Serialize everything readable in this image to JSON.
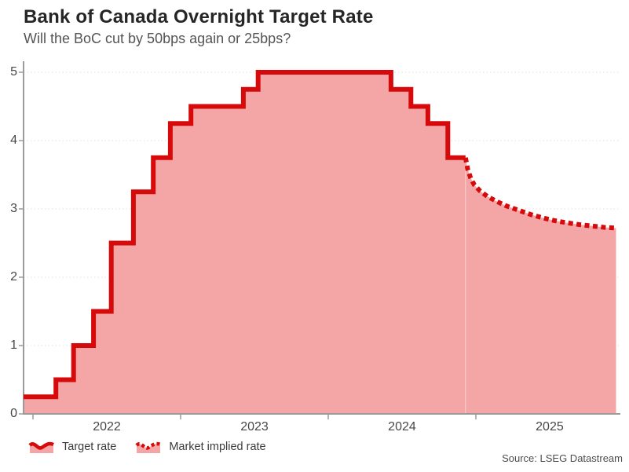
{
  "title": "Bank of Canada Overnight Target Rate",
  "subtitle": "Will the BoC cut by 50bps again or 25bps?",
  "source": "Source: LSEG Datastream",
  "legend": [
    {
      "label": "Target rate",
      "style": "solid"
    },
    {
      "label": "Market implied rate",
      "style": "dotted"
    }
  ],
  "colors": {
    "line": "#d60a0a",
    "fill": "#f4a6a6",
    "axis": "#9b9b9b",
    "grid": "#e0e0e0",
    "title_text": "#262626",
    "subtitle_text": "#555555",
    "tick_text": "#474747",
    "source_text": "#4d4d4d"
  },
  "chart_data": {
    "type": "line",
    "title": "Bank of Canada Overnight Target Rate",
    "subtitle": "Will the BoC cut by 50bps again or 25bps?",
    "xlabel": "",
    "ylabel": "",
    "ylim": [
      0,
      5
    ],
    "xlim": [
      2021.936,
      2025.979
    ],
    "yticks": [
      0,
      1,
      2,
      3,
      4,
      5
    ],
    "xticks": [
      {
        "t": 2022,
        "label": "2022"
      },
      {
        "t": 2023,
        "label": "2023"
      },
      {
        "t": 2024,
        "label": "2024"
      },
      {
        "t": 2025,
        "label": "2025"
      }
    ],
    "grid": "horizontal-dotted",
    "legend_position": "bottom-left",
    "series": [
      {
        "name": "Target rate",
        "style": "solid-step",
        "points": [
          {
            "date": "2021-11",
            "t": 2021.936,
            "v": 0.25
          },
          {
            "date": "2022-03",
            "t": 2022.155,
            "v": 0.5
          },
          {
            "date": "2022-04",
            "t": 2022.275,
            "v": 1.0
          },
          {
            "date": "2022-06",
            "t": 2022.41,
            "v": 1.5
          },
          {
            "date": "2022-07",
            "t": 2022.53,
            "v": 2.5
          },
          {
            "date": "2022-09",
            "t": 2022.68,
            "v": 3.25
          },
          {
            "date": "2022-10",
            "t": 2022.815,
            "v": 3.75
          },
          {
            "date": "2022-12",
            "t": 2022.93,
            "v": 4.25
          },
          {
            "date": "2023-01",
            "t": 2023.07,
            "v": 4.5
          },
          {
            "date": "2023-06",
            "t": 2023.425,
            "v": 4.75
          },
          {
            "date": "2023-07",
            "t": 2023.525,
            "v": 5.0
          },
          {
            "date": "2024-06",
            "t": 2024.425,
            "v": 4.75
          },
          {
            "date": "2024-07",
            "t": 2024.56,
            "v": 4.5
          },
          {
            "date": "2024-09",
            "t": 2024.675,
            "v": 4.25
          },
          {
            "date": "2024-10",
            "t": 2024.81,
            "v": 3.75
          },
          {
            "date": "2024-12",
            "t": 2024.93,
            "v": 3.75
          }
        ]
      },
      {
        "name": "Market implied rate",
        "style": "dotted",
        "points": [
          {
            "t": 2024.93,
            "v": 3.75
          },
          {
            "t": 2024.945,
            "v": 3.58
          },
          {
            "t": 2024.965,
            "v": 3.45
          },
          {
            "t": 2024.99,
            "v": 3.35
          },
          {
            "t": 2025.03,
            "v": 3.26
          },
          {
            "t": 2025.08,
            "v": 3.18
          },
          {
            "t": 2025.14,
            "v": 3.11
          },
          {
            "t": 2025.21,
            "v": 3.04
          },
          {
            "t": 2025.29,
            "v": 2.98
          },
          {
            "t": 2025.37,
            "v": 2.92
          },
          {
            "t": 2025.45,
            "v": 2.87
          },
          {
            "t": 2025.53,
            "v": 2.83
          },
          {
            "t": 2025.61,
            "v": 2.8
          },
          {
            "t": 2025.7,
            "v": 2.77
          },
          {
            "t": 2025.79,
            "v": 2.75
          },
          {
            "t": 2025.87,
            "v": 2.73
          },
          {
            "t": 2025.95,
            "v": 2.72
          }
        ]
      }
    ]
  }
}
